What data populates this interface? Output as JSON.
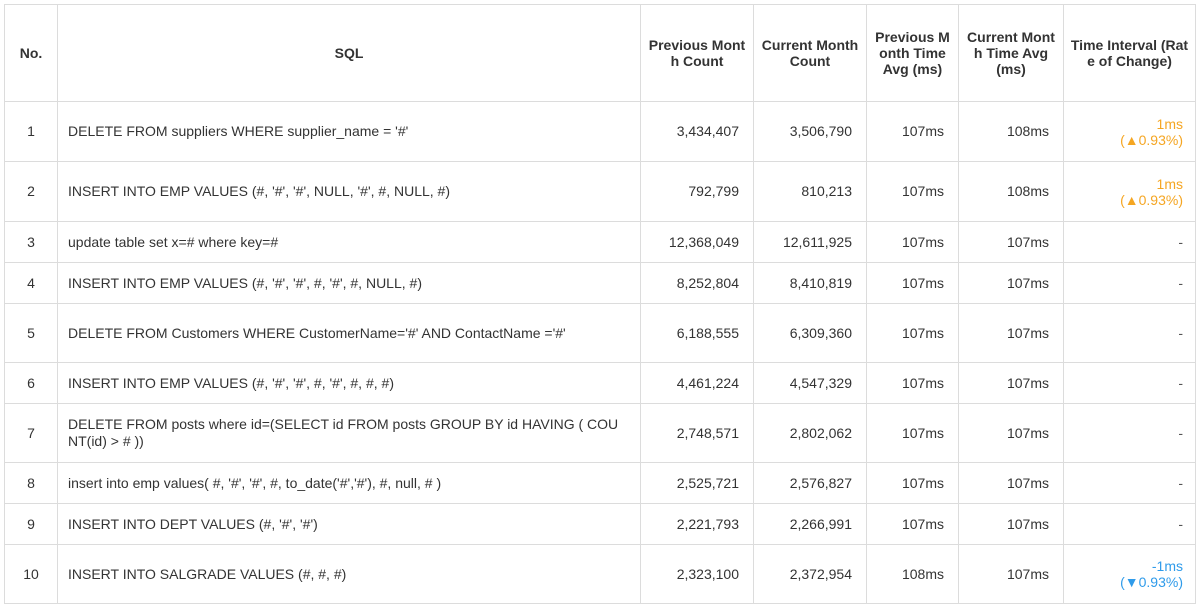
{
  "headers": {
    "no": "No.",
    "sql": "SQL",
    "prev_count": "Previous Month Count",
    "cur_count": "Current Month Count",
    "prev_avg": "Previous Month Time Avg (ms)",
    "cur_avg": "Current Month Time Avg (ms)",
    "interval": "Time Interval (Rate of Change)"
  },
  "colors": {
    "increase": "#f5a623",
    "decrease": "#2f9bea",
    "border": "#dcdcdc"
  },
  "rows": [
    {
      "no": "1",
      "sql": "DELETE FROM suppliers WHERE supplier_name = '#'",
      "prev_count": "3,434,407",
      "cur_count": "3,506,790",
      "prev_avg": "107ms",
      "cur_avg": "108ms",
      "interval": "1ms",
      "rate": "(▲0.93%)",
      "trend": "up"
    },
    {
      "no": "2",
      "sql": "INSERT INTO EMP VALUES (#, '#', '#', NULL, '#', #, NULL, #)",
      "prev_count": "792,799",
      "cur_count": "810,213",
      "prev_avg": "107ms",
      "cur_avg": "108ms",
      "interval": "1ms",
      "rate": "(▲0.93%)",
      "trend": "up"
    },
    {
      "no": "3",
      "sql": "update table set x=# where key=#",
      "prev_count": "12,368,049",
      "cur_count": "12,611,925",
      "prev_avg": "107ms",
      "cur_avg": "107ms",
      "interval": "-",
      "rate": "",
      "trend": "none"
    },
    {
      "no": "4",
      "sql": "INSERT INTO EMP VALUES (#, '#', '#', #, '#', #, NULL, #)",
      "prev_count": "8,252,804",
      "cur_count": "8,410,819",
      "prev_avg": "107ms",
      "cur_avg": "107ms",
      "interval": "-",
      "rate": "",
      "trend": "none"
    },
    {
      "no": "5",
      "sql": "DELETE FROM Customers WHERE CustomerName='#' AND ContactName ='#'",
      "prev_count": "6,188,555",
      "cur_count": "6,309,360",
      "prev_avg": "107ms",
      "cur_avg": "107ms",
      "interval": "-",
      "rate": "",
      "trend": "none"
    },
    {
      "no": "6",
      "sql": "INSERT INTO EMP VALUES (#, '#', '#', #, '#', #, #, #)",
      "prev_count": "4,461,224",
      "cur_count": "4,547,329",
      "prev_avg": "107ms",
      "cur_avg": "107ms",
      "interval": "-",
      "rate": "",
      "trend": "none"
    },
    {
      "no": "7",
      "sql": "DELETE FROM posts where id=(SELECT id FROM posts GROUP BY id HAVING ( COUNT(id) > # ))",
      "prev_count": "2,748,571",
      "cur_count": "2,802,062",
      "prev_avg": "107ms",
      "cur_avg": "107ms",
      "interval": "-",
      "rate": "",
      "trend": "none"
    },
    {
      "no": "8",
      "sql": "insert into emp values( #, '#', '#', #, to_date('#','#'), #, null, # )",
      "prev_count": "2,525,721",
      "cur_count": "2,576,827",
      "prev_avg": "107ms",
      "cur_avg": "107ms",
      "interval": "-",
      "rate": "",
      "trend": "none"
    },
    {
      "no": "9",
      "sql": "INSERT INTO DEPT VALUES (#, '#', '#')",
      "prev_count": "2,221,793",
      "cur_count": "2,266,991",
      "prev_avg": "107ms",
      "cur_avg": "107ms",
      "interval": "-",
      "rate": "",
      "trend": "none"
    },
    {
      "no": "10",
      "sql": "INSERT INTO SALGRADE VALUES (#, #, #)",
      "prev_count": "2,323,100",
      "cur_count": "2,372,954",
      "prev_avg": "108ms",
      "cur_avg": "107ms",
      "interval": "-1ms",
      "rate": "(▼0.93%)",
      "trend": "down"
    }
  ]
}
